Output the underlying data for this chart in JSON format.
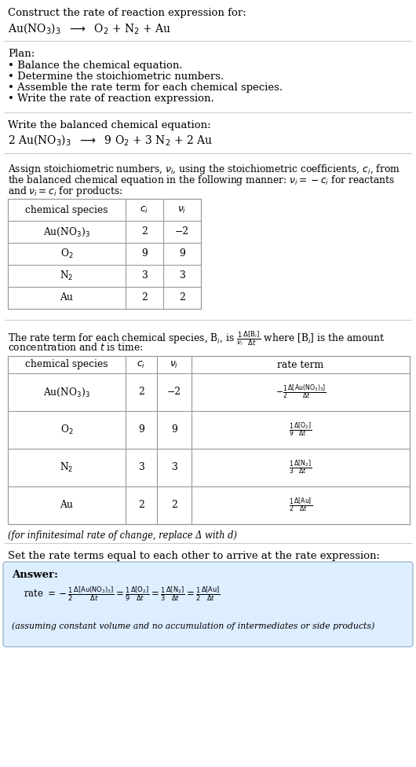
{
  "bg_color": "#ffffff",
  "title_text": "Construct the rate of reaction expression for:",
  "reaction_unbalanced": "Au(NO$_3$)$_3$  $\\longrightarrow$  O$_2$ + N$_2$ + Au",
  "plan_header": "Plan:",
  "plan_items": [
    "• Balance the chemical equation.",
    "• Determine the stoichiometric numbers.",
    "• Assemble the rate term for each chemical species.",
    "• Write the rate of reaction expression."
  ],
  "balanced_header": "Write the balanced chemical equation:",
  "balanced_eq": "2 Au(NO$_3$)$_3$  $\\longrightarrow$  9 O$_2$ + 3 N$_2$ + 2 Au",
  "stoich_header1": "Assign stoichiometric numbers, $\\nu_i$, using the stoichiometric coefficients, $c_i$, from",
  "stoich_header2": "the balanced chemical equation in the following manner: $\\nu_i = -c_i$ for reactants",
  "stoich_header3": "and $\\nu_i = c_i$ for products:",
  "table1_cols": [
    "chemical species",
    "$c_i$",
    "$\\nu_i$"
  ],
  "table1_data": [
    [
      "Au(NO$_3$)$_3$",
      "2",
      "−2"
    ],
    [
      "O$_2$",
      "9",
      "9"
    ],
    [
      "N$_2$",
      "3",
      "3"
    ],
    [
      "Au",
      "2",
      "2"
    ]
  ],
  "rate_header1": "The rate term for each chemical species, B$_i$, is $\\frac{1}{\\nu_i}\\frac{\\Delta[\\mathrm{B}_i]}{\\Delta t}$ where [B$_i$] is the amount",
  "rate_header2": "concentration and $t$ is time:",
  "table2_cols": [
    "chemical species",
    "$c_i$",
    "$\\nu_i$",
    "rate term"
  ],
  "table2_data": [
    [
      "Au(NO$_3$)$_3$",
      "2",
      "−2",
      "$-\\frac{1}{2}\\frac{\\Delta[\\mathrm{Au(NO_3)_3}]}{\\Delta t}$"
    ],
    [
      "O$_2$",
      "9",
      "9",
      "$\\frac{1}{9}\\frac{\\Delta[\\mathrm{O_2}]}{\\Delta t}$"
    ],
    [
      "N$_2$",
      "3",
      "3",
      "$\\frac{1}{3}\\frac{\\Delta[\\mathrm{N_2}]}{\\Delta t}$"
    ],
    [
      "Au",
      "2",
      "2",
      "$\\frac{1}{2}\\frac{\\Delta[\\mathrm{Au}]}{\\Delta t}$"
    ]
  ],
  "infinitesimal_note": "(for infinitesimal rate of change, replace Δ with d)",
  "set_equal_header": "Set the rate terms equal to each other to arrive at the rate expression:",
  "answer_box_color": "#ddeeff",
  "answer_border_color": "#a0b8cc",
  "answer_label": "Answer:",
  "rate_expression": "rate $= -\\frac{1}{2}\\frac{\\Delta[\\mathrm{Au(NO_3)_3}]}{\\Delta t} = \\frac{1}{9}\\frac{\\Delta[\\mathrm{O_2}]}{\\Delta t} = \\frac{1}{3}\\frac{\\Delta[\\mathrm{N_2}]}{\\Delta t} = \\frac{1}{2}\\frac{\\Delta[\\mathrm{Au}]}{\\Delta t}$",
  "assumption_note": "(assuming constant volume and no accumulation of intermediates or side products)"
}
